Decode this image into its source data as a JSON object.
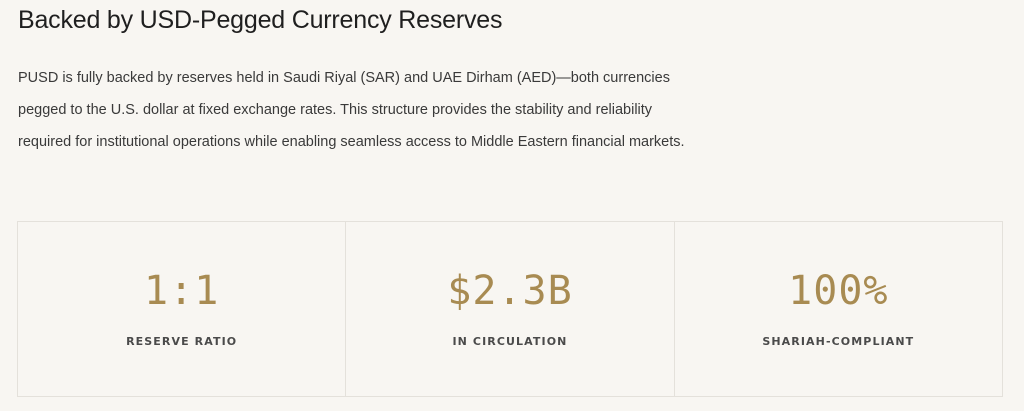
{
  "section": {
    "heading": "Backed by USD-Pegged Currency Reserves",
    "body": "PUSD is fully backed by reserves held in Saudi Riyal (SAR) and UAE Dirham (AED)—both currencies pegged to the U.S. dollar at fixed exchange rates. This structure provides the stability and reliability required for institutional operations while enabling seamless access to Middle Eastern financial markets."
  },
  "stats": [
    {
      "value": "1:1",
      "label": "RESERVE RATIO"
    },
    {
      "value": "$2.3B",
      "label": "IN CIRCULATION"
    },
    {
      "value": "100%",
      "label": "SHARIAH-COMPLIANT"
    }
  ],
  "colors": {
    "background": "#f8f6f2",
    "accent": "#a88b52",
    "border": "#e4e1db",
    "text": "#2a2a2a"
  }
}
